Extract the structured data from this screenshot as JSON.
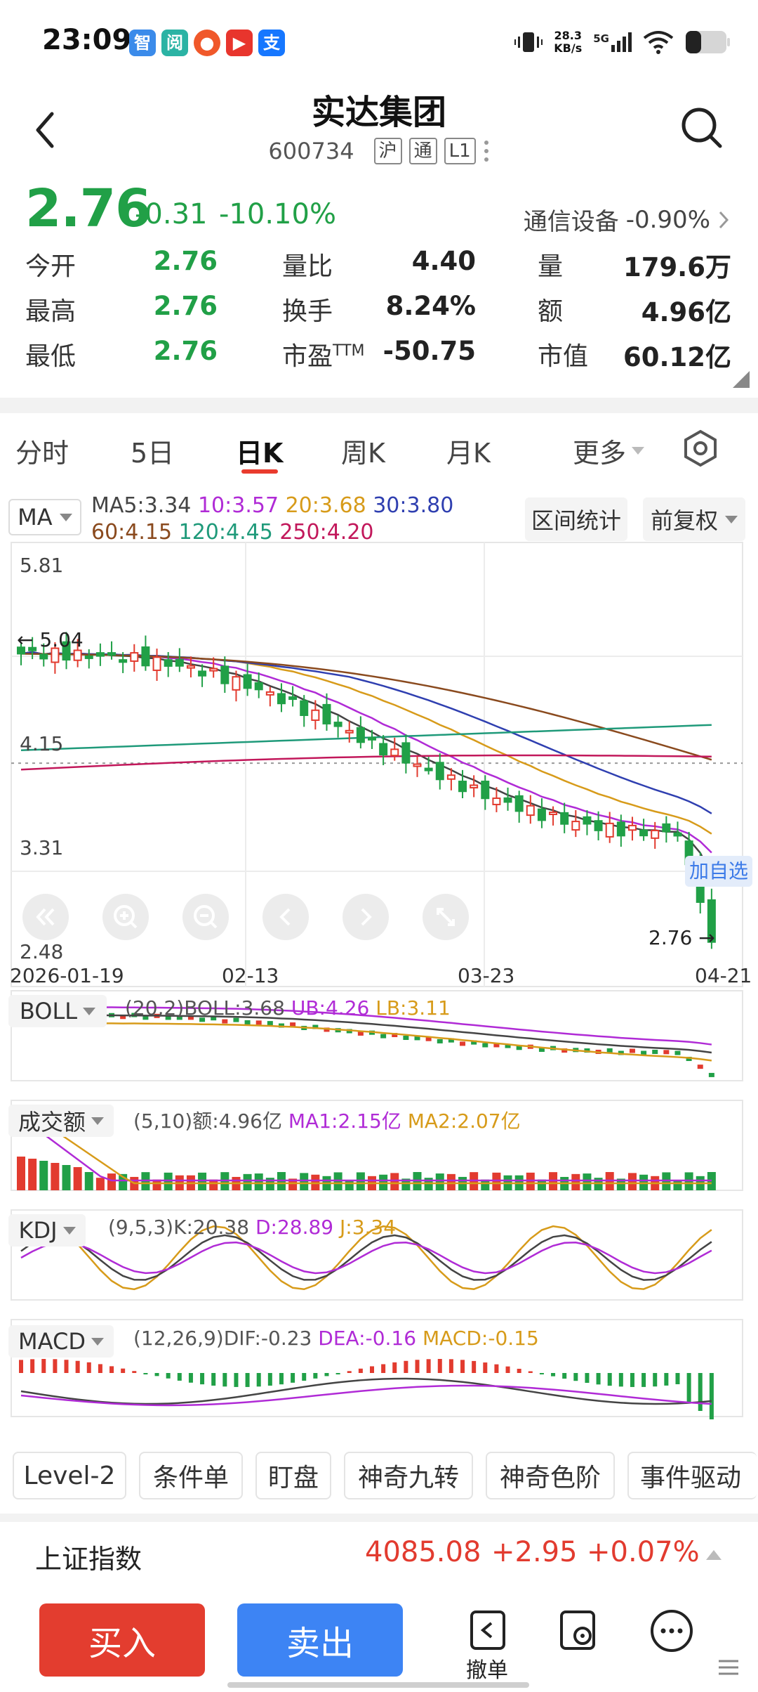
{
  "status_bar": {
    "time": "23:09",
    "apps": [
      {
        "name": "app-icon-1",
        "glyph": "智",
        "color": "#3b8bea"
      },
      {
        "name": "app-icon-2",
        "glyph": "阅",
        "color": "#2bb3a4"
      },
      {
        "name": "app-icon-3",
        "glyph": "●",
        "color": "#f0582a"
      },
      {
        "name": "app-icon-4",
        "glyph": "▶",
        "color": "#e8352d"
      },
      {
        "name": "app-icon-5",
        "glyph": "支",
        "color": "#1677ff"
      }
    ],
    "network_speed": "28.3",
    "network_unit": "KB/s",
    "network_type": "5G"
  },
  "header": {
    "title": "实达集团",
    "code": "600734",
    "tags": [
      "沪",
      "通",
      "L1"
    ]
  },
  "quote": {
    "price": "2.76",
    "change": "-0.31",
    "change_pct": "-10.10%",
    "sector_name": "通信设备",
    "sector_change": "-0.90%",
    "fields": [
      {
        "label": "今开",
        "value": "2.76",
        "colored": true
      },
      {
        "label": "量比",
        "value": "4.40",
        "colored": false
      },
      {
        "label": "量",
        "value": "179.6万",
        "colored": false
      },
      {
        "label": "最高",
        "value": "2.76",
        "colored": true
      },
      {
        "label": "换手",
        "value": "8.24%",
        "colored": false
      },
      {
        "label": "额",
        "value": "4.96亿",
        "colored": false
      },
      {
        "label": "最低",
        "value": "2.76",
        "colored": true
      },
      {
        "label": "市盈",
        "label_sup": "TTM",
        "value": "-50.75",
        "colored": false
      },
      {
        "label": "市值",
        "value": "60.12亿",
        "colored": false
      }
    ]
  },
  "period_tabs": [
    "分时",
    "5日",
    "日K",
    "周K",
    "月K",
    "更多"
  ],
  "active_tab": "日K",
  "chart": {
    "ma_selector": "MA",
    "ma_values": [
      {
        "text": "MA5:3.34",
        "color": "#444444"
      },
      {
        "text": "10:3.57",
        "color": "#b02bd6"
      },
      {
        "text": "20:3.68",
        "color": "#d79b1a"
      },
      {
        "text": "30:3.80",
        "color": "#2f3fb0"
      }
    ],
    "ma_values_row2": [
      {
        "text": "60:4.15",
        "color": "#8a4a1e"
      },
      {
        "text": "120:4.45",
        "color": "#1f9a7a"
      },
      {
        "text": "250:4.20",
        "color": "#c2185b"
      }
    ],
    "interval_stats_label": "区间统计",
    "adjust_label": "前复权",
    "price_axis": [
      "5.81",
      "4.15",
      "3.31",
      "2.48"
    ],
    "high_marker": "5.04",
    "current_marker": "2.76",
    "add_watchlist_label": "加自选",
    "dates": [
      "2026-01-19",
      "02-13",
      "03-23",
      "04-21"
    ]
  },
  "chart_data": {
    "type": "candlestick",
    "y_range": [
      2.48,
      5.81
    ],
    "ma_series": [
      {
        "name": "MA5",
        "last": 3.34,
        "color": "#444444"
      },
      {
        "name": "MA10",
        "last": 3.57,
        "color": "#b02bd6"
      },
      {
        "name": "MA20",
        "last": 3.68,
        "color": "#d79b1a"
      },
      {
        "name": "MA30",
        "last": 3.8,
        "color": "#2f3fb0"
      },
      {
        "name": "MA60",
        "last": 4.15,
        "color": "#8a4a1e"
      },
      {
        "name": "MA120",
        "last": 4.45,
        "color": "#1f9a7a"
      },
      {
        "name": "MA250",
        "last": 4.2,
        "color": "#c2185b"
      }
    ],
    "x_labels": [
      "2026-01-19",
      "02-13",
      "03-23",
      "04-21"
    ]
  },
  "indicators": {
    "boll": {
      "name": "BOLL",
      "params": "(20,2)BOLL:3.68",
      "ub": "UB:4.26",
      "lb": "LB:3.11"
    },
    "volume": {
      "name": "成交额",
      "params": "(5,10)额:4.96亿",
      "ma1": "MA1:2.15亿",
      "ma2": "MA2:2.07亿"
    },
    "kdj": {
      "name": "KDJ",
      "params": "(9,5,3)K:20.38",
      "d": "D:28.89",
      "j": "J:3.34"
    },
    "macd": {
      "name": "MACD",
      "params": "(12,26,9)DIF:-0.23",
      "dea": "DEA:-0.16",
      "macd": "MACD:-0.15"
    }
  },
  "feature_tabs": [
    "Level-2",
    "条件单",
    "盯盘",
    "神奇九转",
    "神奇色阶",
    "事件驱动"
  ],
  "index_bar": {
    "name": "上证指数",
    "value": "4085.08",
    "change": "+2.95",
    "change_pct": "+0.07%"
  },
  "bottom": {
    "buy": "买入",
    "sell": "卖出",
    "cancel": "撤单"
  }
}
